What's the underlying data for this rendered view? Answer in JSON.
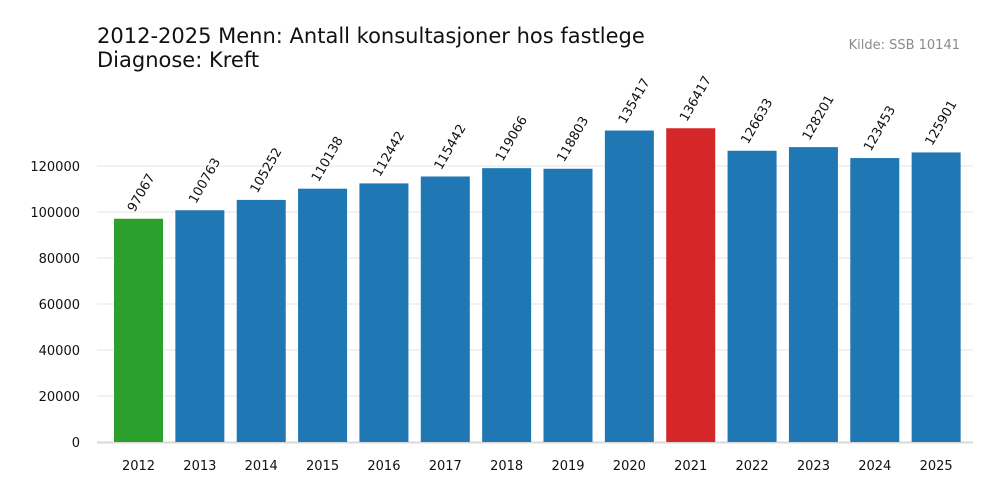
{
  "header": {
    "title_line1": "2012-2025 Menn: Antall konsultasjoner hos fastlege",
    "title_line2": "Diagnose: Kreft",
    "source": "Kilde: SSB 10141"
  },
  "chart_data": {
    "type": "bar",
    "title": "2012-2025 Menn: Antall konsultasjoner hos fastlege\nDiagnose: Kreft",
    "xlabel": "",
    "ylabel": "",
    "categories": [
      "2012",
      "2013",
      "2014",
      "2015",
      "2016",
      "2017",
      "2018",
      "2019",
      "2020",
      "2021",
      "2022",
      "2023",
      "2024",
      "2025"
    ],
    "values": [
      97067,
      100763,
      105252,
      110138,
      112442,
      115442,
      119066,
      118803,
      135417,
      136417,
      126633,
      128201,
      123453,
      125901
    ],
    "ylim": [
      0,
      160000
    ],
    "yticks": [
      0,
      20000,
      40000,
      60000,
      80000,
      100000,
      120000
    ],
    "grid": "horizontal",
    "colors": {
      "default": "#1f77b4",
      "min": "#2ca02c",
      "max": "#d62728",
      "grid": "#e6e6e6",
      "axis": "#d9d9d9"
    },
    "highlight": {
      "2012": "min",
      "2021": "max"
    },
    "data_labels": true
  }
}
